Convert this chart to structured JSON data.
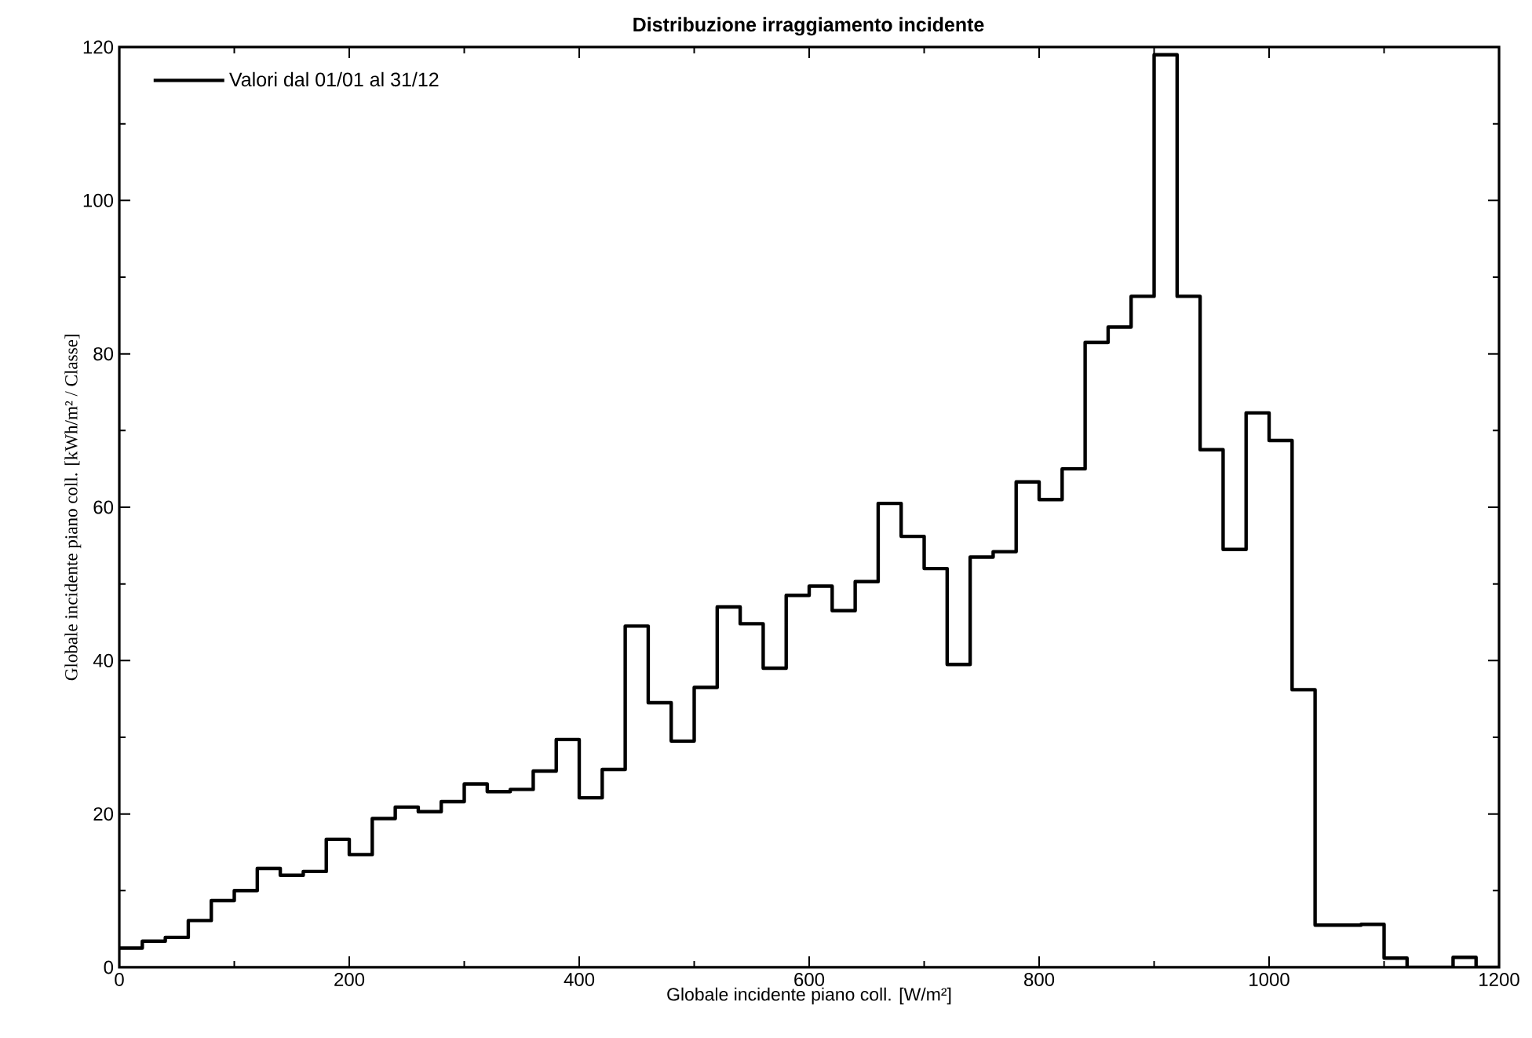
{
  "chart_data": {
    "type": "histogram",
    "title": "Distribuzione irraggiamento incidente",
    "xlabel": "Globale incidente piano coll. [W/m²]",
    "ylabel": "Globale incidente piano coll. [kWh/m² / Classe]",
    "bins": [
      0,
      20,
      40,
      60,
      80,
      100,
      120,
      140,
      160,
      180,
      200,
      220,
      240,
      260,
      280,
      300,
      320,
      340,
      360,
      380,
      400,
      420,
      440,
      460,
      480,
      500,
      520,
      540,
      560,
      580,
      600,
      620,
      640,
      660,
      680,
      700,
      720,
      740,
      760,
      780,
      800,
      820,
      840,
      860,
      880,
      900,
      920,
      940,
      960,
      980,
      1000,
      1020,
      1040,
      1060,
      1080,
      1100,
      1120,
      1140,
      1160,
      1180,
      1200
    ],
    "series": [
      {
        "name": "Valori dal 01/01 al 31/12",
        "color": "#000000",
        "values": [
          2.5,
          3.4,
          3.9,
          6.1,
          8.7,
          10,
          12.9,
          12,
          12.5,
          16.7,
          14.7,
          19.4,
          20.9,
          20.3,
          21.6,
          23.9,
          22.9,
          23.2,
          25.6,
          29.7,
          22.1,
          25.8,
          44.5,
          34.5,
          29.5,
          36.5,
          47,
          44.8,
          39,
          48.5,
          49.7,
          46.5,
          50.3,
          60.5,
          56.2,
          52,
          39.5,
          53.5,
          54.2,
          63.3,
          61,
          65,
          81.5,
          83.5,
          87.5,
          119,
          87.5,
          67.5,
          54.5,
          72.3,
          68.7,
          36.2,
          5.5,
          5.5,
          5.6,
          1.2,
          0,
          0,
          1.3,
          0
        ]
      }
    ],
    "xlim": [
      0,
      1200
    ],
    "ylim": [
      0,
      120
    ],
    "xticks": [
      0,
      200,
      400,
      600,
      800,
      1000,
      1200
    ],
    "yticks": [
      0,
      20,
      40,
      60,
      80,
      100,
      120
    ],
    "legend": "top left",
    "grid": false,
    "line_style": "solid",
    "marker": "none"
  }
}
